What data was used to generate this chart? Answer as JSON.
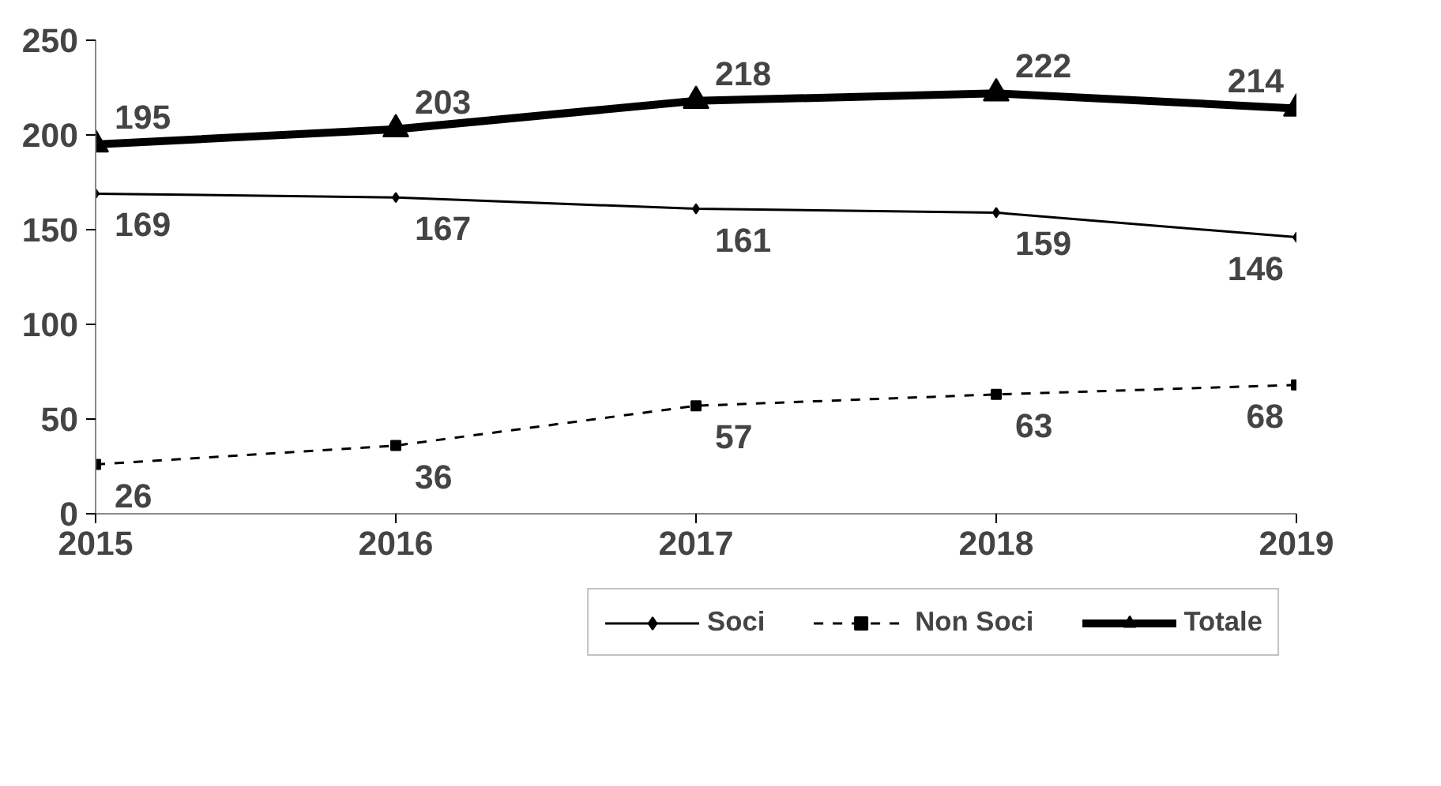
{
  "chart_data": {
    "type": "line",
    "x": [
      2015,
      2016,
      2017,
      2018,
      2019
    ],
    "xlim": [
      2015,
      2019
    ],
    "xticks": [
      2015,
      2016,
      2017,
      2018,
      2019
    ],
    "ylim": [
      0,
      250
    ],
    "yticks": [
      0,
      50,
      100,
      150,
      200,
      250
    ],
    "grid": false,
    "legend": "bottom right",
    "data_labels": true,
    "series": [
      {
        "name": "Soci",
        "color": "#000000",
        "values": [
          169,
          167,
          161,
          159,
          146
        ],
        "marker": "diamond",
        "line_style": "solid"
      },
      {
        "name": "Non Soci",
        "color": "#000000",
        "values": [
          26,
          36,
          57,
          63,
          68
        ],
        "marker": "square",
        "line_style": "dashed"
      },
      {
        "name": "Totale",
        "color": "#000000",
        "values": [
          195,
          203,
          218,
          222,
          214
        ],
        "marker": "triangle",
        "line_style": "solid"
      }
    ]
  }
}
